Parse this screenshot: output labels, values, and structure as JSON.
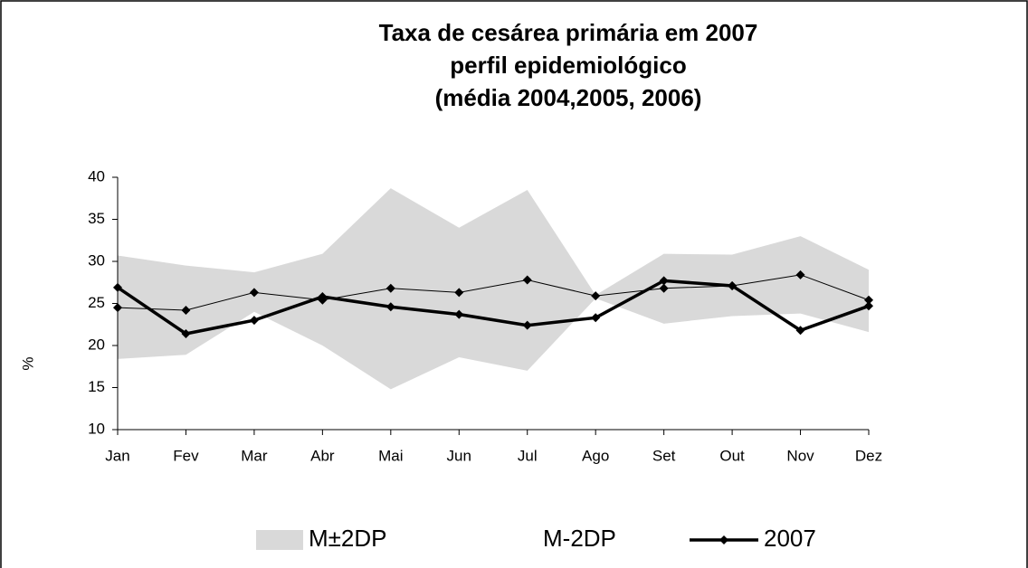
{
  "chart_data": {
    "type": "line",
    "title": [
      "Taxa de cesárea primária em 2007",
      "perfil epidemiológico",
      "(média 2004,2005, 2006)"
    ],
    "y_label": "%",
    "categories": [
      "Jan",
      "Fev",
      "Mar",
      "Abr",
      "Mai",
      "Jun",
      "Jul",
      "Ago",
      "Set",
      "Out",
      "Nov",
      "Dez"
    ],
    "ylim": [
      10,
      40
    ],
    "yticks": [
      10,
      15,
      20,
      25,
      30,
      35,
      40
    ],
    "grid": false,
    "legend": "bottom",
    "series": [
      {
        "name": "M±2DP",
        "type": "area",
        "color": "#d9d9d9",
        "values": [
          12.3,
          10.6,
          4.7,
          10.9,
          23.9,
          15.4,
          21.5,
          0.4,
          8.3,
          7.3,
          9.2,
          7.4
        ]
      },
      {
        "name": "M-2DP",
        "type": "area",
        "color": "#ffffff",
        "values": [
          18.4,
          18.9,
          24.0,
          20.0,
          14.8,
          18.6,
          17.0,
          25.6,
          22.6,
          23.5,
          23.8,
          21.6
        ]
      },
      {
        "type": "line",
        "color": "#000000",
        "line_width": 1,
        "values": [
          24.5,
          24.2,
          26.3,
          25.4,
          26.8,
          26.3,
          27.8,
          25.9,
          26.8,
          27.1,
          28.4,
          25.4
        ]
      },
      {
        "name": "2007",
        "type": "line",
        "color": "#000000",
        "line_width": 3.5,
        "values": [
          26.9,
          21.4,
          23.0,
          25.8,
          24.6,
          23.7,
          22.4,
          23.3,
          27.7,
          27.1,
          21.8,
          24.7
        ]
      }
    ]
  }
}
